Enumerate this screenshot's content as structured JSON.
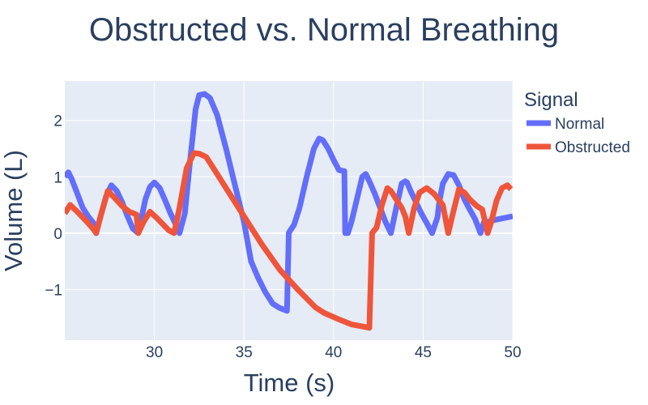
{
  "chart_data": {
    "type": "line",
    "title": "Obstructed vs. Normal Breathing",
    "xlabel": "Time (s)",
    "ylabel": "Volume (L)",
    "xlim": [
      25,
      50
    ],
    "ylim": [
      -1.9,
      2.7
    ],
    "xticks": [
      30,
      35,
      40,
      45,
      50
    ],
    "xtick_labels": [
      "30",
      "35",
      "40",
      "45",
      "50"
    ],
    "yticks": [
      -1,
      0,
      1,
      2
    ],
    "ytick_labels": [
      "−1",
      "0",
      "1",
      "2"
    ],
    "grid": true,
    "legend": {
      "title": "Signal",
      "position": "top-right-outside"
    },
    "series": [
      {
        "name": "Normal",
        "color": "#636efa",
        "x": [
          25.0,
          25.2,
          25.4,
          25.7,
          26.0,
          26.3,
          26.6,
          26.75,
          27.0,
          27.3,
          27.6,
          27.9,
          28.2,
          28.5,
          28.8,
          29.1,
          29.3,
          29.5,
          29.75,
          30.0,
          30.3,
          30.6,
          30.9,
          31.2,
          31.4,
          31.7,
          32.0,
          32.3,
          32.5,
          32.8,
          33.1,
          33.5,
          34.0,
          34.5,
          35.0,
          35.4,
          35.8,
          36.2,
          36.6,
          37.0,
          37.4,
          37.5,
          37.55,
          37.8,
          38.1,
          38.5,
          38.9,
          39.2,
          39.4,
          39.7,
          40.0,
          40.3,
          40.6,
          40.65,
          40.8,
          41.0,
          41.3,
          41.6,
          41.8,
          42.0,
          42.3,
          42.6,
          42.9,
          43.2,
          43.5,
          43.8,
          44.0,
          44.1,
          44.3,
          44.6,
          44.9,
          45.2,
          45.5,
          45.8,
          45.9,
          46.1,
          46.4,
          46.7,
          47.0,
          47.3,
          47.6,
          47.9,
          48.2,
          48.4,
          48.6,
          48.8,
          49.1,
          49.4,
          50.0
        ],
        "y": [
          1.0,
          1.08,
          0.95,
          0.7,
          0.45,
          0.3,
          0.18,
          0.0,
          0.3,
          0.65,
          0.85,
          0.75,
          0.55,
          0.3,
          0.08,
          0.0,
          0.3,
          0.6,
          0.82,
          0.9,
          0.8,
          0.58,
          0.35,
          0.15,
          0.0,
          0.35,
          1.3,
          2.2,
          2.45,
          2.47,
          2.4,
          2.1,
          1.5,
          0.85,
          0.2,
          -0.5,
          -0.8,
          -1.05,
          -1.25,
          -1.33,
          -1.38,
          0.0,
          0.03,
          0.15,
          0.45,
          1.0,
          1.5,
          1.68,
          1.65,
          1.5,
          1.3,
          1.12,
          1.1,
          0.0,
          0.0,
          0.2,
          0.6,
          1.0,
          1.05,
          0.92,
          0.7,
          0.45,
          0.2,
          0.0,
          0.45,
          0.88,
          0.92,
          0.9,
          0.75,
          0.55,
          0.35,
          0.18,
          0.0,
          0.28,
          0.55,
          0.88,
          1.05,
          1.03,
          0.85,
          0.6,
          0.42,
          0.25,
          0.0,
          0.2,
          0.2,
          0.22,
          0.24,
          0.26,
          0.3
        ]
      },
      {
        "name": "Obstructed",
        "color": "#ef553b",
        "x": [
          25.0,
          25.3,
          25.7,
          26.0,
          26.3,
          26.6,
          26.75,
          27.0,
          27.4,
          27.8,
          28.2,
          28.6,
          29.0,
          29.1,
          29.4,
          29.75,
          30.1,
          30.5,
          30.8,
          31.1,
          31.4,
          31.8,
          32.2,
          32.5,
          32.9,
          33.3,
          34.0,
          35.0,
          36.0,
          37.0,
          38.0,
          39.0,
          39.5,
          40.3,
          41.0,
          41.5,
          42.0,
          42.15,
          42.4,
          42.7,
          43.0,
          43.2,
          43.5,
          43.8,
          44.0,
          44.2,
          44.5,
          44.8,
          45.2,
          45.6,
          45.9,
          46.1,
          46.4,
          46.7,
          47.0,
          47.3,
          47.6,
          48.0,
          48.3,
          48.6,
          48.8,
          49.1,
          49.4,
          49.7,
          49.9
        ],
        "y": [
          0.35,
          0.5,
          0.38,
          0.28,
          0.18,
          0.07,
          0.0,
          0.3,
          0.75,
          0.62,
          0.48,
          0.38,
          0.33,
          0.0,
          0.2,
          0.38,
          0.28,
          0.15,
          0.05,
          0.0,
          0.45,
          1.15,
          1.42,
          1.41,
          1.35,
          1.15,
          0.8,
          0.3,
          -0.2,
          -0.65,
          -1.0,
          -1.32,
          -1.42,
          -1.53,
          -1.62,
          -1.65,
          -1.68,
          0.0,
          0.1,
          0.5,
          0.8,
          0.75,
          0.6,
          0.45,
          0.3,
          0.0,
          0.45,
          0.72,
          0.8,
          0.7,
          0.58,
          0.5,
          0.0,
          0.4,
          0.78,
          0.72,
          0.6,
          0.48,
          0.42,
          0.0,
          0.2,
          0.58,
          0.8,
          0.85,
          0.78
        ]
      }
    ]
  }
}
